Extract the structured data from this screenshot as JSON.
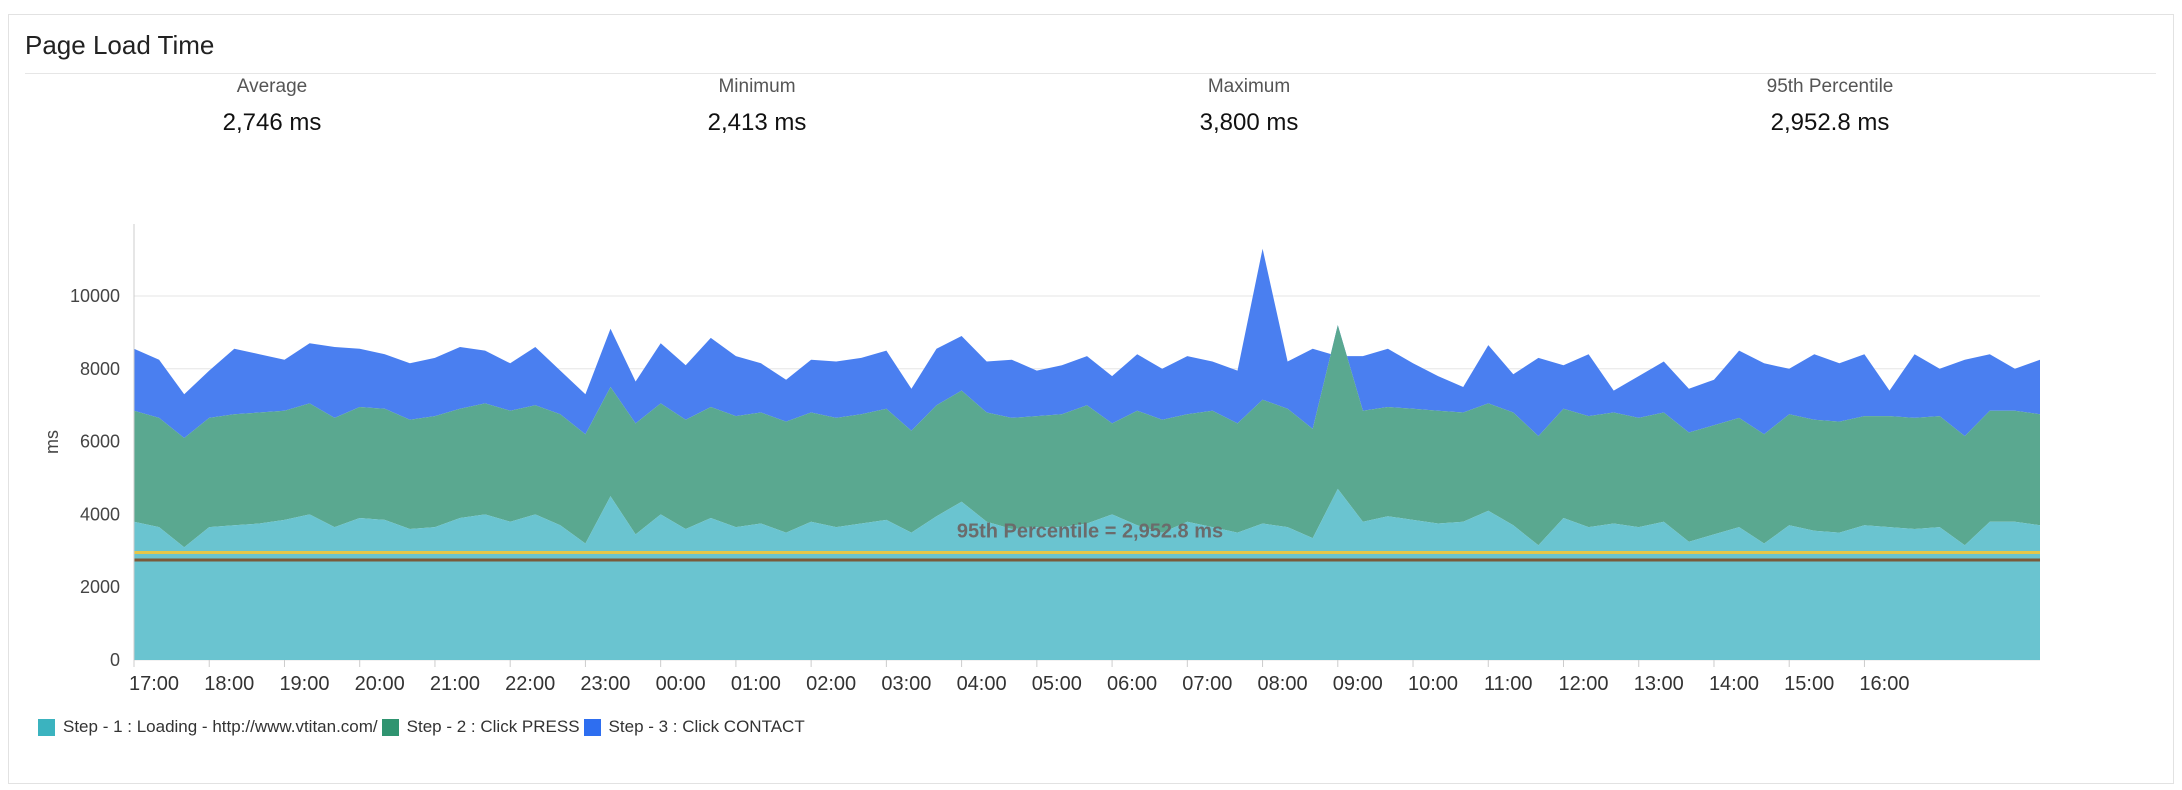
{
  "header": {
    "title": "Page Load Time"
  },
  "stats": [
    {
      "label": "Average",
      "value": "2,746 ms"
    },
    {
      "label": "Minimum",
      "value": "2,413 ms"
    },
    {
      "label": "Maximum",
      "value": "3,800 ms"
    },
    {
      "label": "95th Percentile",
      "value": "2,952.8 ms"
    }
  ],
  "chart_data": {
    "type": "area",
    "stacked": true,
    "ylabel": "ms",
    "xlabel": "",
    "ylim": [
      0,
      12000
    ],
    "yticks": [
      0,
      2000,
      4000,
      6000,
      8000,
      10000
    ],
    "grid": true,
    "legend_position": "bottom-left",
    "x_tick_labels": [
      "17:00",
      "18:00",
      "19:00",
      "20:00",
      "21:00",
      "22:00",
      "23:00",
      "00:00",
      "01:00",
      "02:00",
      "03:00",
      "04:00",
      "05:00",
      "06:00",
      "07:00",
      "08:00",
      "09:00",
      "10:00",
      "11:00",
      "12:00",
      "13:00",
      "14:00",
      "15:00",
      "16:00"
    ],
    "points_per_hour": 3,
    "series": [
      {
        "name": "Step - 1 : Loading - http://www.vtitan.com/",
        "color": "#6ac4d0",
        "totals": [
          3800,
          3650,
          3100,
          3650,
          3700,
          3750,
          3850,
          4000,
          3650,
          3900,
          3850,
          3600,
          3650,
          3900,
          4000,
          3800,
          4000,
          3700,
          3200,
          4500,
          3450,
          4000,
          3600,
          3900,
          3650,
          3750,
          3500,
          3800,
          3650,
          3750,
          3850,
          3500,
          3950,
          4350,
          3800,
          3600,
          3650,
          3650,
          3750,
          4000,
          3700,
          3500,
          3800,
          3650,
          3500,
          3750,
          3650,
          3350,
          4700,
          3800,
          3950,
          3850,
          3750,
          3800,
          4100,
          3700,
          3150,
          3900,
          3650,
          3750,
          3650,
          3800,
          3250,
          3450,
          3650,
          3200,
          3700,
          3550,
          3500,
          3700,
          3650,
          3600,
          3650,
          3150,
          3800,
          3800,
          3700
        ]
      },
      {
        "name": "Step - 2 : Click PRESS",
        "color": "#5aa890",
        "totals": [
          6850,
          6650,
          6100,
          6650,
          6750,
          6800,
          6850,
          7050,
          6650,
          6950,
          6900,
          6600,
          6700,
          6900,
          7050,
          6850,
          7000,
          6750,
          6200,
          7500,
          6500,
          7050,
          6600,
          6950,
          6700,
          6800,
          6550,
          6800,
          6650,
          6750,
          6900,
          6300,
          7000,
          7400,
          6800,
          6650,
          6700,
          6750,
          7000,
          6500,
          6850,
          6600,
          6750,
          6850,
          6500,
          7150,
          6900,
          6350,
          9200,
          6850,
          6950,
          6900,
          6850,
          6800,
          7050,
          6800,
          6150,
          6900,
          6700,
          6800,
          6650,
          6800,
          6250,
          6450,
          6650,
          6200,
          6750,
          6600,
          6550,
          6700,
          6700,
          6650,
          6700,
          6150,
          6850,
          6850,
          6750
        ]
      },
      {
        "name": "Step - 3 : Click CONTACT",
        "color": "#4a7ff0",
        "totals": [
          8550,
          8250,
          7300,
          7950,
          8550,
          8400,
          8250,
          8700,
          8600,
          8550,
          8400,
          8150,
          8300,
          8600,
          8500,
          8150,
          8600,
          7950,
          7300,
          9100,
          7650,
          8700,
          8100,
          8850,
          8350,
          8150,
          7700,
          8250,
          8200,
          8300,
          8500,
          7450,
          8550,
          8900,
          8200,
          8250,
          7950,
          8100,
          8350,
          7800,
          8400,
          8000,
          8350,
          8200,
          7950,
          11300,
          8200,
          8550,
          8350,
          8350,
          8550,
          8150,
          7800,
          7500,
          8650,
          7850,
          8300,
          8100,
          8400,
          7400,
          7800,
          8200,
          7450,
          7700,
          8500,
          8150,
          8000,
          8400,
          8150,
          8400,
          7400,
          8400,
          8000,
          8250,
          8400,
          8000,
          8250
        ]
      }
    ],
    "reference_lines": [
      {
        "label": "95th Percentile = 2,952.8 ms",
        "value": 2952.8,
        "color": "#e5c74a"
      },
      {
        "value": 2746,
        "color": "#7a5a3a"
      }
    ]
  }
}
